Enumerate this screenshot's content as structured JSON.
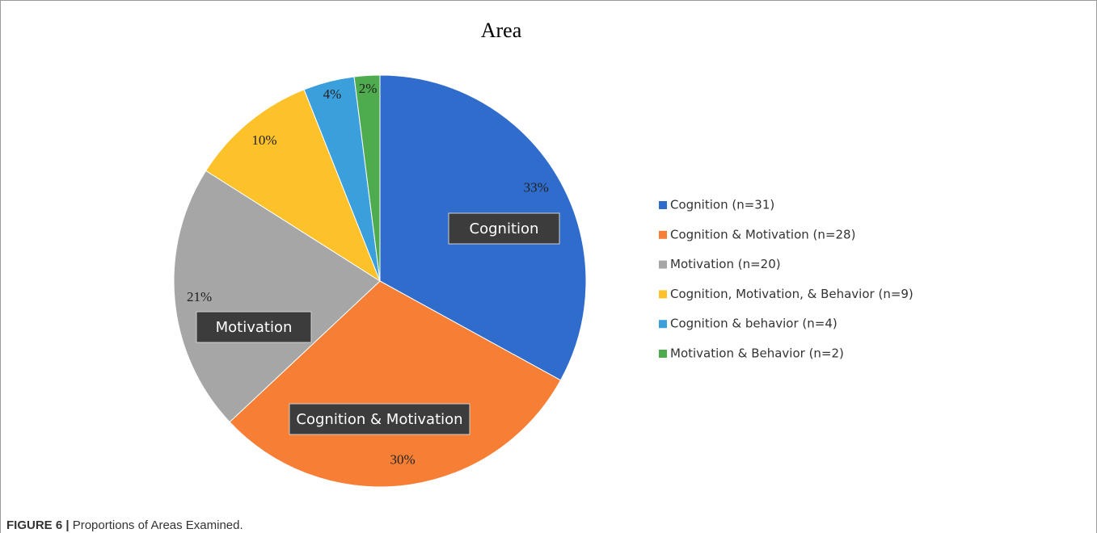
{
  "chart_data": {
    "type": "pie",
    "title": "Area",
    "categories": [
      "Cognition (n=31)",
      "Cognition & Motivation (n=28)",
      "Motivation (n=20)",
      "Cognition, Motivation, & Behavior (n=9)",
      "Cognition & behavior (n=4)",
      "Motivation & Behavior (n=2)"
    ],
    "values": [
      33,
      30,
      21,
      10,
      4,
      2
    ],
    "value_labels": [
      "33%",
      "30%",
      "21%",
      "10%",
      "4%",
      "2%"
    ],
    "colors": [
      "#2f6ccc",
      "#f67f35",
      "#a6a6a6",
      "#fdc12a",
      "#3b9fdc",
      "#4eab4e"
    ],
    "annotations": [
      "Cognition",
      "Cognition & Motivation",
      "Motivation"
    ],
    "legend": "right"
  },
  "caption": {
    "label": "FIGURE 6 |",
    "text": "Proportions of Areas Examined."
  }
}
